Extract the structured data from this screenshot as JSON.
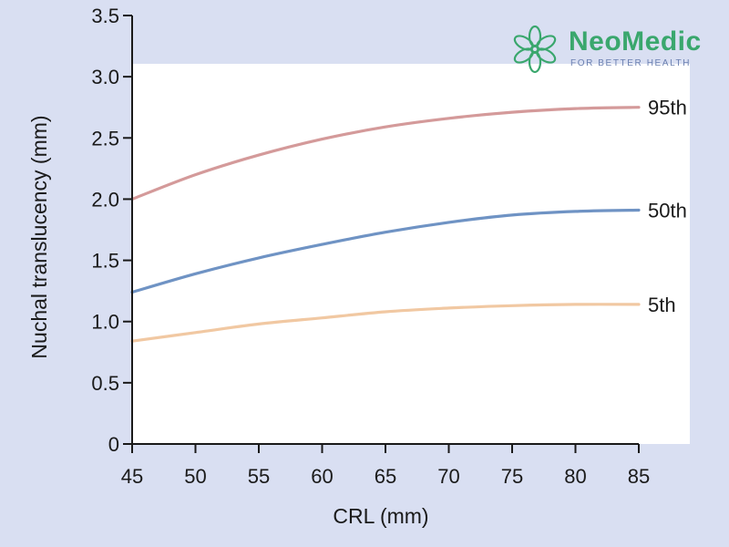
{
  "colors": {
    "background": "#d9dff2",
    "plot_area": "#ffffff",
    "axis": "#1a1a1a",
    "series_95th": "#d49a9a",
    "series_50th": "#6f93c4",
    "series_5th": "#f1c8a2",
    "logo_green": "#3aa76d",
    "logo_tagline": "#6a7fb0"
  },
  "logo": {
    "name": "NeoMedic",
    "tagline": "FOR BETTER HEALTH",
    "icon": "flower-logo-icon"
  },
  "chart_data": {
    "type": "line",
    "title": "",
    "xlabel": "CRL (mm)",
    "ylabel": "Nuchal translucency (mm)",
    "xlim": [
      45,
      85
    ],
    "ylim": [
      0,
      3.5
    ],
    "x_ticks": [
      "45",
      "50",
      "55",
      "60",
      "65",
      "70",
      "75",
      "80",
      "85"
    ],
    "y_ticks": [
      "0",
      "0.5",
      "1.0",
      "1.5",
      "2.0",
      "2.5",
      "3.0",
      "3.5"
    ],
    "x": [
      45,
      50,
      55,
      60,
      65,
      70,
      75,
      80,
      85
    ],
    "series": [
      {
        "name": "95th",
        "color": "#d49a9a",
        "values": [
          2.0,
          2.2,
          2.36,
          2.49,
          2.59,
          2.66,
          2.71,
          2.74,
          2.75
        ]
      },
      {
        "name": "50th",
        "color": "#6f93c4",
        "values": [
          1.24,
          1.39,
          1.52,
          1.63,
          1.73,
          1.81,
          1.87,
          1.9,
          1.91
        ]
      },
      {
        "name": "5th",
        "color": "#f1c8a2",
        "values": [
          0.84,
          0.91,
          0.98,
          1.03,
          1.08,
          1.11,
          1.13,
          1.14,
          1.14
        ]
      }
    ],
    "grid": false,
    "legend": "inline-right"
  }
}
